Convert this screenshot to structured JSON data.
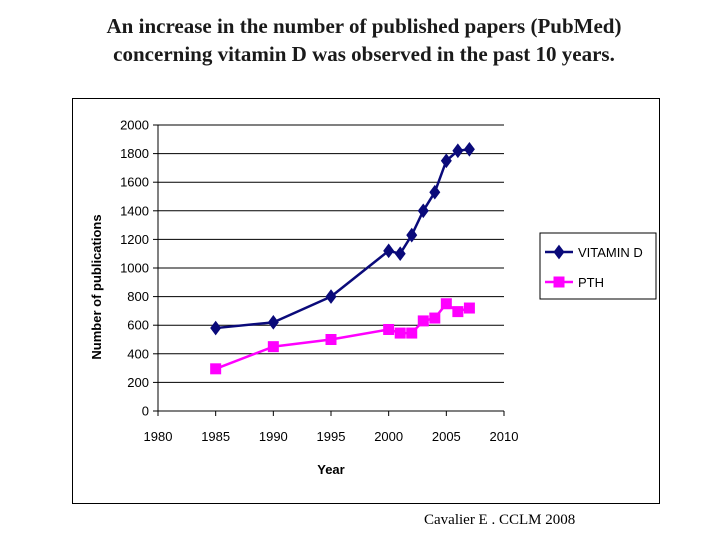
{
  "slide": {
    "title_line1": "An increase in the number of published papers (PubMed)",
    "title_line2": "concerning vitamin D was observed in the past 10 years.",
    "citation": "Cavalier E . CCLM 2008"
  },
  "chart_data": {
    "type": "line",
    "title": "",
    "xlabel": "Year",
    "ylabel": "Number of publications",
    "xlim": [
      1980,
      2010
    ],
    "ylim": [
      0,
      2000
    ],
    "xticks": [
      1980,
      1985,
      1990,
      1995,
      2000,
      2005,
      2010
    ],
    "yticks": [
      0,
      200,
      400,
      600,
      800,
      1000,
      1200,
      1400,
      1600,
      1800,
      2000
    ],
    "grid": "horizontal",
    "legend_position": "right",
    "series": [
      {
        "name": "VITAMIN D",
        "color": "#0a0a7a",
        "marker": "diamond",
        "x": [
          1985,
          1990,
          1995,
          2000,
          2001,
          2002,
          2003,
          2004,
          2005,
          2006,
          2007
        ],
        "y": [
          580,
          620,
          800,
          1120,
          1100,
          1230,
          1400,
          1530,
          1750,
          1820,
          1830
        ]
      },
      {
        "name": "PTH",
        "color": "#ff00ff",
        "marker": "square",
        "x": [
          1985,
          1990,
          1995,
          2000,
          2001,
          2002,
          2003,
          2004,
          2005,
          2006,
          2007
        ],
        "y": [
          295,
          450,
          500,
          570,
          545,
          545,
          630,
          650,
          750,
          695,
          720
        ]
      }
    ]
  }
}
